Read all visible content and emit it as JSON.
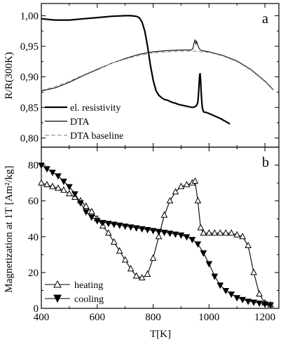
{
  "chart_data": [
    {
      "panel": "a",
      "type": "line",
      "ylabel": "R/R(300K)",
      "xlabel": "",
      "xlim": [
        400,
        1250
      ],
      "ylim": [
        0.785,
        1.02
      ],
      "yticks": [
        "0,80",
        "0,85",
        "0,90",
        "0,95",
        "1,00"
      ],
      "yticks_values": [
        0.8,
        0.85,
        0.9,
        0.95,
        1.0
      ],
      "legend_position": "bottom-left",
      "series": [
        {
          "name": "el. resistivity",
          "style": "solid-thick",
          "color": "#000000",
          "x": [
            400,
            450,
            500,
            550,
            600,
            650,
            700,
            720,
            740,
            750,
            760,
            770,
            780,
            790,
            800,
            810,
            820,
            830,
            840,
            850,
            860,
            870,
            880,
            890,
            900,
            910,
            920,
            930,
            940,
            950,
            955,
            960,
            963,
            966,
            968,
            970,
            972,
            974,
            976,
            980,
            985,
            990,
            1000,
            1020,
            1040,
            1060,
            1075
          ],
          "y": [
            0.995,
            0.993,
            0.993,
            0.995,
            0.997,
            0.999,
            1.0,
            1.0,
            0.999,
            0.997,
            0.99,
            0.975,
            0.95,
            0.92,
            0.895,
            0.878,
            0.87,
            0.866,
            0.863,
            0.862,
            0.86,
            0.858,
            0.857,
            0.855,
            0.854,
            0.853,
            0.852,
            0.851,
            0.85,
            0.851,
            0.853,
            0.858,
            0.875,
            0.9,
            0.906,
            0.895,
            0.875,
            0.86,
            0.85,
            0.843,
            0.842,
            0.842,
            0.84,
            0.836,
            0.832,
            0.827,
            0.823
          ]
        },
        {
          "name": "DTA",
          "style": "solid",
          "color": "#000000",
          "x": [
            400,
            450,
            500,
            550,
            600,
            650,
            700,
            750,
            800,
            850,
            900,
            935,
            942,
            946,
            950,
            953,
            956,
            960,
            965,
            970,
            975,
            1000,
            1050,
            1100,
            1150,
            1200,
            1230
          ],
          "y": [
            0.877,
            0.882,
            0.891,
            0.902,
            0.912,
            0.922,
            0.93,
            0.937,
            0.941,
            0.943,
            0.944,
            0.944,
            0.946,
            0.955,
            0.961,
            0.954,
            0.958,
            0.952,
            0.946,
            0.944,
            0.943,
            0.941,
            0.935,
            0.926,
            0.912,
            0.893,
            0.879
          ]
        },
        {
          "name": "DTA baseline",
          "style": "dashed-gray",
          "color": "#999999",
          "x": [
            400,
            450,
            500,
            550,
            600,
            650,
            700,
            750,
            800,
            850,
            900,
            950,
            1000,
            1050,
            1100,
            1150,
            1200,
            1230
          ],
          "y": [
            0.878,
            0.884,
            0.893,
            0.903,
            0.913,
            0.922,
            0.929,
            0.935,
            0.939,
            0.941,
            0.942,
            0.942,
            0.94,
            0.934,
            0.925,
            0.911,
            0.892,
            0.878
          ]
        }
      ],
      "label": "a"
    },
    {
      "panel": "b",
      "type": "line",
      "ylabel": "Magnetization at 1T [Am²/kg]",
      "xlabel": "T[K]",
      "xlim": [
        400,
        1250
      ],
      "ylim": [
        0,
        90
      ],
      "xticks": [
        "400",
        "600",
        "800",
        "1000",
        "1200"
      ],
      "xticks_values": [
        400,
        600,
        800,
        1000,
        1200
      ],
      "yticks": [
        "0",
        "20",
        "40",
        "60",
        "80"
      ],
      "yticks_values": [
        0,
        20,
        40,
        60,
        80
      ],
      "legend_position": "bottom-left",
      "series": [
        {
          "name": "heating",
          "marker": "open-triangle-up",
          "color": "#000000",
          "x": [
            400,
            420,
            440,
            460,
            480,
            500,
            520,
            540,
            560,
            580,
            600,
            620,
            640,
            660,
            680,
            700,
            720,
            740,
            760,
            780,
            800,
            820,
            840,
            860,
            880,
            900,
            920,
            940,
            950,
            960,
            970,
            980,
            1000,
            1020,
            1040,
            1060,
            1080,
            1100,
            1120,
            1140,
            1160,
            1180,
            1200,
            1220
          ],
          "y": [
            70,
            69,
            68,
            67,
            66,
            64,
            62,
            60,
            57,
            54,
            50,
            46,
            42,
            37,
            32,
            27,
            22,
            18,
            17,
            19,
            28,
            40,
            52,
            60,
            65,
            68,
            69,
            70,
            71,
            60,
            45,
            42,
            42,
            42,
            42,
            42,
            42,
            41,
            40,
            35,
            20,
            8,
            3,
            2
          ]
        },
        {
          "name": "cooling",
          "marker": "filled-triangle-down",
          "color": "#000000",
          "x": [
            400,
            420,
            440,
            460,
            480,
            500,
            520,
            540,
            560,
            580,
            600,
            620,
            640,
            660,
            680,
            700,
            720,
            740,
            760,
            780,
            800,
            820,
            840,
            860,
            880,
            900,
            920,
            940,
            960,
            980,
            1000,
            1020,
            1040,
            1060,
            1080,
            1100,
            1120,
            1140,
            1160,
            1180,
            1200,
            1220
          ],
          "y": [
            80,
            78,
            76,
            74,
            71,
            68,
            64,
            59,
            54,
            51,
            49,
            48,
            47.5,
            47,
            46.5,
            46,
            45.5,
            45,
            44.5,
            44,
            43.5,
            43,
            42.5,
            42,
            41.5,
            41,
            40,
            38.5,
            36,
            31,
            25,
            18,
            13,
            10,
            8,
            6,
            5,
            4,
            3.5,
            3,
            2.5,
            2
          ]
        }
      ],
      "label": "b"
    }
  ]
}
